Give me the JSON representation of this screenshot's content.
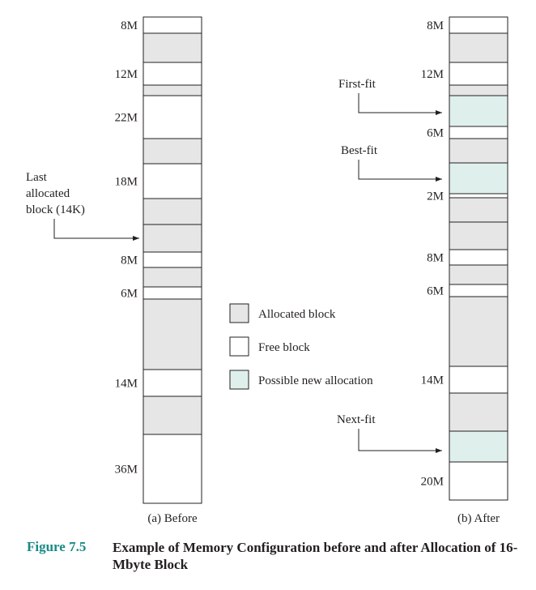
{
  "colors": {
    "allocated": "#e6e6e6",
    "free": "#ffffff",
    "new_allocation": "#dff0ec",
    "border": "#231f20",
    "caption_accent": "#1a8a86"
  },
  "before": {
    "title": "(a) Before",
    "blocks": [
      {
        "type": "free",
        "label": "8M"
      },
      {
        "type": "allocated",
        "label": ""
      },
      {
        "type": "free",
        "label": "12M"
      },
      {
        "type": "allocated",
        "label": ""
      },
      {
        "type": "free",
        "label": "22M"
      },
      {
        "type": "allocated",
        "label": ""
      },
      {
        "type": "free",
        "label": "18M"
      },
      {
        "type": "allocated",
        "label": ""
      },
      {
        "type": "allocated",
        "label": ""
      },
      {
        "type": "free",
        "label": "8M"
      },
      {
        "type": "allocated",
        "label": ""
      },
      {
        "type": "free",
        "label": "6M"
      },
      {
        "type": "allocated",
        "label": ""
      },
      {
        "type": "free",
        "label": "14M"
      },
      {
        "type": "allocated",
        "label": ""
      },
      {
        "type": "free",
        "label": "36M"
      }
    ],
    "annotation": {
      "lines": [
        "Last",
        "allocated",
        "block (14K)"
      ]
    }
  },
  "after": {
    "title": "(b) After",
    "blocks": [
      {
        "type": "free",
        "label": "8M"
      },
      {
        "type": "allocated",
        "label": ""
      },
      {
        "type": "free",
        "label": "12M"
      },
      {
        "type": "allocated",
        "label": ""
      },
      {
        "type": "new",
        "label": ""
      },
      {
        "type": "free",
        "label": "6M"
      },
      {
        "type": "allocated",
        "label": ""
      },
      {
        "type": "new",
        "label": ""
      },
      {
        "type": "free",
        "label": "2M"
      },
      {
        "type": "allocated",
        "label": ""
      },
      {
        "type": "allocated",
        "label": ""
      },
      {
        "type": "free",
        "label": "8M"
      },
      {
        "type": "allocated",
        "label": ""
      },
      {
        "type": "free",
        "label": "6M"
      },
      {
        "type": "allocated",
        "label": ""
      },
      {
        "type": "free",
        "label": "14M"
      },
      {
        "type": "allocated",
        "label": ""
      },
      {
        "type": "new",
        "label": ""
      },
      {
        "type": "free",
        "label": "20M"
      }
    ],
    "annotations": [
      "First-fit",
      "Best-fit",
      "Next-fit"
    ]
  },
  "legend": [
    {
      "type": "allocated",
      "label": "Allocated block"
    },
    {
      "type": "free",
      "label": "Free block"
    },
    {
      "type": "new",
      "label": "Possible new allocation"
    }
  ],
  "caption": {
    "figure_label": "Figure 7.5",
    "text": "Example of Memory Configuration before and after Allocation of 16-Mbyte Block"
  }
}
